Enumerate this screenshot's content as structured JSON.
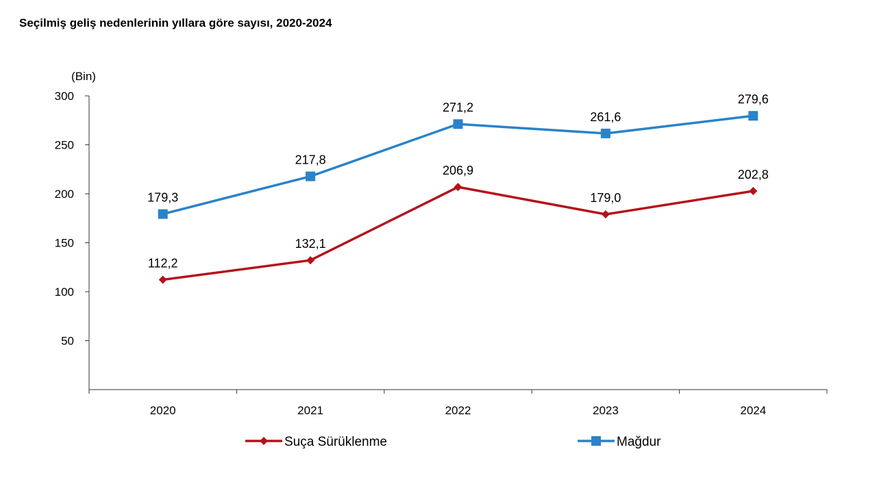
{
  "chart_data": {
    "type": "line",
    "title": "Seçilmiş geliş nedenlerinin yıllara göre sayısı, 2020-2024",
    "unit_label": "(Bin)",
    "categories": [
      "2020",
      "2021",
      "2022",
      "2023",
      "2024"
    ],
    "ylim": [
      0,
      300
    ],
    "yticks": [
      50,
      100,
      150,
      200,
      250,
      300
    ],
    "grid": false,
    "legend_position": "bottom",
    "series": [
      {
        "name": "Suça Sürüklenme",
        "color": "#b5121b",
        "marker": "diamond",
        "values": [
          112.2,
          132.1,
          206.9,
          179.0,
          202.8
        ],
        "labels": [
          "112,2",
          "132,1",
          "206,9",
          "179,0",
          "202,8"
        ]
      },
      {
        "name": "Mağdur",
        "color": "#2a83c9",
        "marker": "square",
        "values": [
          179.3,
          217.8,
          271.2,
          261.6,
          279.6
        ],
        "labels": [
          "179,3",
          "217,8",
          "271,2",
          "261,6",
          "279,6"
        ]
      }
    ]
  }
}
